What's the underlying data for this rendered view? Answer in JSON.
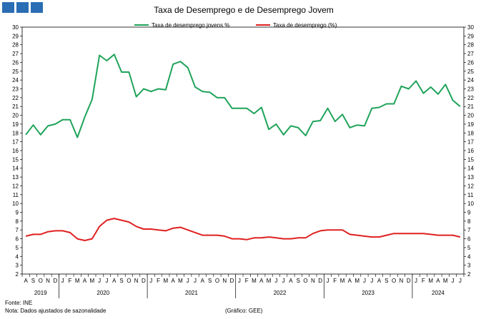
{
  "logo": {
    "icon": "gee-logo-icon",
    "color": "#2a6db5"
  },
  "chart_data": {
    "type": "line",
    "title": "Taxa de Desemprego e de Desemprego Jovem",
    "ylim": [
      2,
      30
    ],
    "yticks": [
      2,
      3,
      4,
      5,
      6,
      7,
      8,
      9,
      10,
      11,
      12,
      13,
      14,
      15,
      16,
      17,
      18,
      19,
      20,
      21,
      22,
      23,
      24,
      25,
      26,
      27,
      28,
      29,
      30
    ],
    "grid": false,
    "legend_position": "top",
    "months": [
      "A",
      "S",
      "O",
      "N",
      "D",
      "J",
      "F",
      "M",
      "A",
      "M",
      "J",
      "J",
      "A",
      "S",
      "O",
      "N",
      "D",
      "J",
      "F",
      "M",
      "A",
      "M",
      "J",
      "J",
      "A",
      "S",
      "O",
      "N",
      "D",
      "J",
      "F",
      "M",
      "A",
      "M",
      "J",
      "J",
      "A",
      "S",
      "O",
      "N",
      "D",
      "J",
      "F",
      "M",
      "A",
      "M",
      "J",
      "J",
      "A",
      "S",
      "O",
      "N",
      "D",
      "J",
      "F",
      "M",
      "A",
      "M",
      "J",
      "J"
    ],
    "years": [
      {
        "label": "2019",
        "start": 0,
        "end": 4
      },
      {
        "label": "2020",
        "start": 5,
        "end": 16
      },
      {
        "label": "2021",
        "start": 17,
        "end": 28
      },
      {
        "label": "2022",
        "start": 29,
        "end": 40
      },
      {
        "label": "2023",
        "start": 41,
        "end": 52
      },
      {
        "label": "2024",
        "start": 53,
        "end": 59
      }
    ],
    "series": [
      {
        "name": "Taxa de desemprego jovens %",
        "color": "#1fa35a",
        "values": [
          17.8,
          18.9,
          17.8,
          18.8,
          19.0,
          19.5,
          19.5,
          17.5,
          19.8,
          21.8,
          26.8,
          26.2,
          26.9,
          24.9,
          24.9,
          22.1,
          23.0,
          22.7,
          23.0,
          22.9,
          25.8,
          26.1,
          25.4,
          23.2,
          22.7,
          22.6,
          22.0,
          22.0,
          20.8,
          20.8,
          20.8,
          20.2,
          20.9,
          18.4,
          19.0,
          17.8,
          18.8,
          18.6,
          17.7,
          19.3,
          19.4,
          20.8,
          19.3,
          20.1,
          18.6,
          18.9,
          18.8,
          20.8,
          20.9,
          21.3,
          21.3,
          23.3,
          23.0,
          23.9,
          22.5,
          23.2,
          22.4,
          23.5,
          21.7,
          21.0
        ]
      },
      {
        "name": "Taxa de desemprego (%)",
        "color": "#e02020",
        "values": [
          6.3,
          6.5,
          6.5,
          6.8,
          6.9,
          6.9,
          6.7,
          6.0,
          5.8,
          6.0,
          7.4,
          8.1,
          8.3,
          8.1,
          7.9,
          7.4,
          7.1,
          7.1,
          7.0,
          6.9,
          7.2,
          7.3,
          7.0,
          6.7,
          6.4,
          6.4,
          6.4,
          6.3,
          6.0,
          6.0,
          5.9,
          6.1,
          6.1,
          6.2,
          6.1,
          6.0,
          6.0,
          6.1,
          6.1,
          6.6,
          6.9,
          7.0,
          7.0,
          7.0,
          6.5,
          6.4,
          6.3,
          6.2,
          6.2,
          6.4,
          6.6,
          6.6,
          6.6,
          6.6,
          6.6,
          6.5,
          6.4,
          6.4,
          6.4,
          6.2
        ]
      }
    ]
  },
  "footer": {
    "source": "Fonte: INE",
    "note": "Nota: Dados ajustados de sazonalidade",
    "credit": "(Gráfico: GEE)"
  }
}
